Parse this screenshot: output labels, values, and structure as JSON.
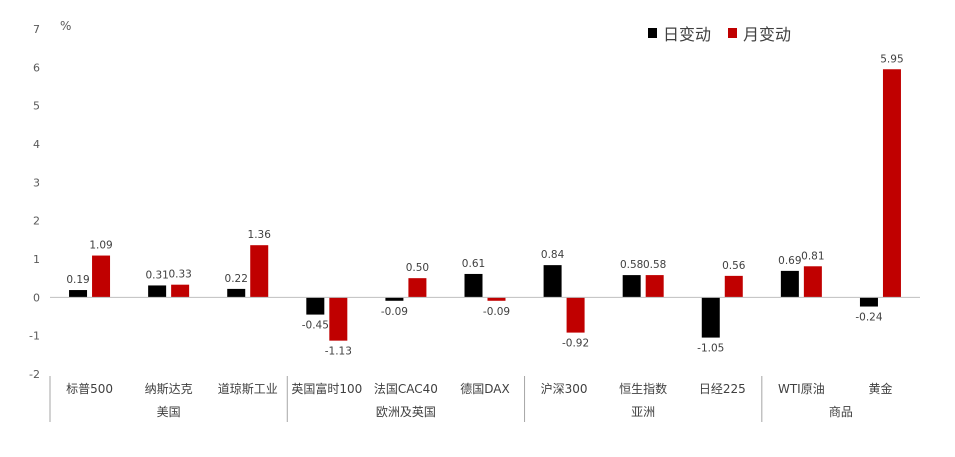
{
  "chart_data": {
    "type": "bar",
    "unit_label": "%",
    "ylim": [
      -2,
      7
    ],
    "yticks": [
      -2,
      -1,
      0,
      1,
      2,
      3,
      4,
      5,
      6,
      7
    ],
    "categories": [
      "标普500",
      "纳斯达克",
      "道琼斯工业",
      "英国富时100",
      "法国CAC40",
      "德国DAX",
      "沪深300",
      "恒生指数",
      "日经225",
      "WTI原油",
      "黄金"
    ],
    "groups": [
      {
        "label": "美国",
        "start": 0,
        "end": 2
      },
      {
        "label": "欧洲及英国",
        "start": 3,
        "end": 5
      },
      {
        "label": "亚洲",
        "start": 6,
        "end": 8
      },
      {
        "label": "商品",
        "start": 9,
        "end": 10
      }
    ],
    "series": [
      {
        "name": "日变动",
        "color": "#000000",
        "values": [
          0.19,
          0.31,
          0.22,
          -0.45,
          -0.09,
          0.61,
          0.84,
          0.58,
          -1.05,
          0.69,
          -0.24
        ]
      },
      {
        "name": "月变动",
        "color": "#C00000",
        "values": [
          1.09,
          0.33,
          1.36,
          -1.13,
          0.5,
          -0.09,
          -0.92,
          0.58,
          0.56,
          0.81,
          5.95
        ]
      }
    ],
    "grid": false,
    "legend_position": "top-right"
  }
}
